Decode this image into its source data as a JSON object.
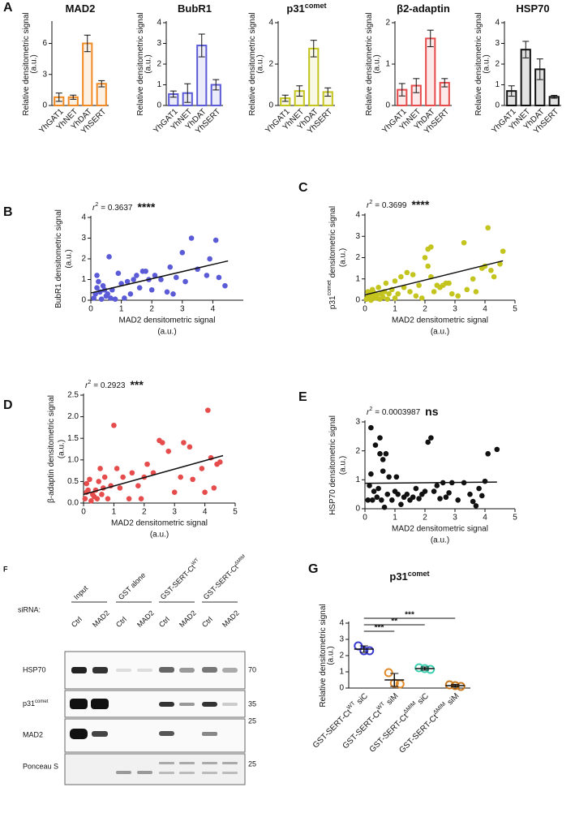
{
  "chart_data": [
    {
      "type": "bar",
      "panel": "A",
      "title": "MAD2",
      "categories": [
        "YhGAT1",
        "YhNET",
        "YhDAT",
        "YhSERT"
      ],
      "values": [
        0.8,
        0.8,
        6.0,
        2.1
      ],
      "errors": [
        0.4,
        0.2,
        0.8,
        0.3
      ],
      "color": "#f08a24",
      "ylim": [
        0,
        8
      ],
      "yticks": [
        0,
        3,
        6
      ],
      "ylabel": [
        "Relative densitometric signal",
        "(a.u.)"
      ]
    },
    {
      "type": "bar",
      "title": "BubR1",
      "categories": [
        "YhGAT1",
        "YhNET",
        "YhDAT",
        "YhSERT"
      ],
      "values": [
        0.55,
        0.6,
        2.9,
        1.0
      ],
      "errors": [
        0.15,
        0.45,
        0.55,
        0.25
      ],
      "color": "#5b5bd8",
      "ylim": [
        0,
        4
      ],
      "yticks": [
        0,
        1,
        2,
        3,
        4
      ],
      "ylabel": [
        "Relative densitometric signal",
        "(a.u.)"
      ]
    },
    {
      "type": "bar",
      "title": "p31",
      "title_sup": "comet",
      "categories": [
        "YhGAT1",
        "YhNET",
        "YhDAT",
        "YhSERT"
      ],
      "values": [
        0.35,
        0.7,
        2.75,
        0.65
      ],
      "errors": [
        0.15,
        0.25,
        0.4,
        0.2
      ],
      "color": "#c4c41e",
      "ylim": [
        0,
        4
      ],
      "yticks": [
        0,
        2,
        4
      ],
      "ylabel": [
        "Relative densitometric signal",
        "(a.u.)"
      ]
    },
    {
      "type": "bar",
      "title": "β2-adaptin",
      "categories": [
        "YhGAT1",
        "YhNET",
        "YhDAT",
        "YhSERT"
      ],
      "values": [
        0.38,
        0.48,
        1.62,
        0.55
      ],
      "errors": [
        0.15,
        0.17,
        0.2,
        0.1
      ],
      "color": "#e64c4c",
      "ylim": [
        0,
        2
      ],
      "yticks": [
        0,
        1,
        2
      ],
      "ylabel": [
        "Relative densitometric signal",
        "(a.u.)"
      ]
    },
    {
      "type": "bar",
      "title": "HSP70",
      "categories": [
        "YhGAT1",
        "YhNET",
        "YhDAT",
        "YhSERT"
      ],
      "values": [
        0.7,
        2.7,
        1.75,
        0.42
      ],
      "errors": [
        0.25,
        0.4,
        0.5,
        0.07
      ],
      "color": "#111111",
      "ylim": [
        0,
        4
      ],
      "yticks": [
        0,
        1,
        2,
        3,
        4
      ],
      "ylabel": [
        "Relative densitometric signal",
        "(a.u.)"
      ]
    },
    {
      "type": "scatter",
      "panel": "B",
      "color": "#5b5bd8",
      "x": [
        0.1,
        0.15,
        0.2,
        0.2,
        0.25,
        0.3,
        0.35,
        0.4,
        0.45,
        0.5,
        0.55,
        0.6,
        0.65,
        0.7,
        0.8,
        0.9,
        1.0,
        1.1,
        1.2,
        1.3,
        1.4,
        1.5,
        1.6,
        1.7,
        1.8,
        1.9,
        2.0,
        2.1,
        2.3,
        2.5,
        2.6,
        2.7,
        2.8,
        3.0,
        3.1,
        3.3,
        3.5,
        3.8,
        4.1,
        4.2,
        4.4,
        3.9
      ],
      "y": [
        0.1,
        0.3,
        0.6,
        1.2,
        0.9,
        0.4,
        0.05,
        0.7,
        0.5,
        0.2,
        0.3,
        2.1,
        0.1,
        0.5,
        0.05,
        1.3,
        0.8,
        0.1,
        0.9,
        0.3,
        1.0,
        1.2,
        0.6,
        1.4,
        1.4,
        1.0,
        0.5,
        1.2,
        1.0,
        0.4,
        1.6,
        0.3,
        1.1,
        2.3,
        0.9,
        3.0,
        1.5,
        1.2,
        2.9,
        1.1,
        0.7,
        2.0
      ],
      "fit": {
        "x": [
          0,
          4.5
        ],
        "y": [
          0.35,
          1.9
        ]
      },
      "stat_prefix": "r",
      "stat_sup": "2",
      "stat_text": "= 0.3637",
      "significance": "****",
      "xlim": [
        0,
        5
      ],
      "xticks": [
        0,
        1,
        2,
        3,
        4
      ],
      "ylim": [
        0,
        4
      ],
      "yticks": [
        0,
        1,
        2,
        3,
        4
      ],
      "xlabel": [
        "MAD2 densitometric signal",
        "(a.u.)"
      ],
      "ylabel": [
        "BubR1 densitometric signal",
        "(a.u.)"
      ]
    },
    {
      "type": "scatter",
      "panel": "C",
      "color": "#c4c41e",
      "x": [
        0.05,
        0.1,
        0.1,
        0.15,
        0.2,
        0.2,
        0.25,
        0.3,
        0.3,
        0.35,
        0.4,
        0.45,
        0.5,
        0.55,
        0.6,
        0.65,
        0.7,
        0.75,
        0.8,
        0.9,
        1.0,
        1.0,
        1.1,
        1.2,
        1.3,
        1.4,
        1.5,
        1.6,
        1.7,
        1.8,
        1.9,
        2.0,
        2.1,
        2.2,
        2.2,
        2.3,
        2.4,
        2.5,
        2.6,
        2.7,
        2.8,
        2.9,
        3.1,
        3.3,
        3.4,
        3.6,
        3.7,
        3.9,
        4.0,
        4.1,
        4.2,
        4.3,
        4.5,
        4.6,
        2.1
      ],
      "y": [
        0.05,
        0.2,
        0.4,
        0.1,
        0.3,
        0,
        0.5,
        0.2,
        0.35,
        0.1,
        0.25,
        0.6,
        0.05,
        0.3,
        0.15,
        0.4,
        0.8,
        0.05,
        0.3,
        0.5,
        0.9,
        0.1,
        0.3,
        1.1,
        0.6,
        1.3,
        0.4,
        1.2,
        0.2,
        0.7,
        0.1,
        2.0,
        1.6,
        2.5,
        1.1,
        0.4,
        0.7,
        0.6,
        0.7,
        0.8,
        0.8,
        0.3,
        0.2,
        2.7,
        0.5,
        1.0,
        0.4,
        1.5,
        1.6,
        3.4,
        1.4,
        1.1,
        1.7,
        2.3,
        2.4
      ],
      "fit": {
        "x": [
          0,
          4.6
        ],
        "y": [
          0.25,
          1.85
        ]
      },
      "stat_prefix": "r",
      "stat_sup": "2",
      "stat_text": "= 0.3699",
      "significance": "****",
      "xlim": [
        0,
        5
      ],
      "xticks": [
        0,
        1,
        2,
        3,
        4,
        5
      ],
      "ylim": [
        0,
        4
      ],
      "yticks": [
        0,
        1,
        2,
        3,
        4
      ],
      "xlabel": [
        "MAD2 densitometric signal",
        "(a.u.)"
      ],
      "ylabel_prefix": "p31",
      "ylabel_sup": "comet",
      "ylabel": [
        "densitometric signal",
        "(a.u.)"
      ]
    },
    {
      "type": "scatter",
      "panel": "D",
      "color": "#e64c4c",
      "x": [
        0.05,
        0.1,
        0.1,
        0.15,
        0.2,
        0.25,
        0.3,
        0.35,
        0.4,
        0.45,
        0.5,
        0.55,
        0.6,
        0.65,
        0.7,
        0.8,
        0.9,
        1.0,
        1.1,
        1.2,
        1.3,
        1.5,
        1.6,
        1.8,
        1.9,
        2.0,
        2.3,
        2.5,
        2.6,
        2.8,
        3.0,
        3.2,
        3.3,
        3.5,
        3.6,
        3.9,
        4.0,
        4.1,
        4.2,
        4.4,
        4.5,
        4.3,
        2.1
      ],
      "y": [
        0.1,
        0.45,
        0.25,
        0.3,
        0.55,
        0.05,
        0.2,
        0.15,
        0.3,
        0.1,
        0.5,
        0.8,
        0.2,
        0.35,
        0.6,
        0.1,
        0.4,
        1.8,
        0.8,
        0.35,
        0.6,
        0.1,
        0.7,
        0.4,
        0.1,
        0.6,
        0.7,
        1.45,
        1.4,
        1.2,
        0.25,
        0.6,
        1.4,
        1.3,
        0.55,
        0.8,
        0.25,
        2.15,
        1.05,
        0.9,
        0.95,
        0.35,
        0.9
      ],
      "fit": {
        "x": [
          0,
          4.6
        ],
        "y": [
          0.2,
          1.1
        ]
      },
      "stat_prefix": "r",
      "stat_sup": "2",
      "stat_text": "= 0.2923",
      "significance": "***",
      "xlim": [
        0,
        5
      ],
      "xticks": [
        0,
        1,
        2,
        3,
        4,
        5
      ],
      "ylim": [
        0,
        2.5
      ],
      "yticks": [
        {
          "value": 0,
          "label": "0.0"
        },
        0.5,
        {
          "value": 1,
          "label": "1.0"
        },
        1.5,
        {
          "value": 2,
          "label": "2.0"
        },
        2.5
      ],
      "xlabel": [
        "MAD2 densitometric signal",
        "(a.u.)"
      ],
      "ylabel": [
        "β-adaptin densitometric signal",
        "(a.u.)"
      ]
    },
    {
      "type": "scatter",
      "panel": "E",
      "color": "#111111",
      "x": [
        0.1,
        0.15,
        0.2,
        0.2,
        0.25,
        0.3,
        0.35,
        0.4,
        0.45,
        0.5,
        0.5,
        0.55,
        0.6,
        0.65,
        0.7,
        0.75,
        0.8,
        0.9,
        1.0,
        1.1,
        1.2,
        1.3,
        1.4,
        1.5,
        1.6,
        1.7,
        1.8,
        1.9,
        2.0,
        2.1,
        2.2,
        2.3,
        2.4,
        2.5,
        2.6,
        2.7,
        2.8,
        2.9,
        3.1,
        3.3,
        3.5,
        3.6,
        3.8,
        3.9,
        4.0,
        4.1,
        4.4,
        1.05,
        0.6,
        3.7
      ],
      "y": [
        0.3,
        0.8,
        2.8,
        1.2,
        0.3,
        0.6,
        2.2,
        0.4,
        0.7,
        1.9,
        2.45,
        0.3,
        1.7,
        0.05,
        1.9,
        0.5,
        1.1,
        0.3,
        0.6,
        0.5,
        0.15,
        0.4,
        0.5,
        0.3,
        0.4,
        0.7,
        0.35,
        0.5,
        0.6,
        2.3,
        2.45,
        0.6,
        0.8,
        0.35,
        0.9,
        0.4,
        0.55,
        0.9,
        0.3,
        0.9,
        0.5,
        0.25,
        0.7,
        0.45,
        0.95,
        1.9,
        2.05,
        1.1,
        1.3,
        0.1
      ],
      "fit": {
        "x": [
          0,
          4.4
        ],
        "y": [
          0.88,
          0.92
        ]
      },
      "stat_prefix": "r",
      "stat_sup": "2",
      "stat_text": "= 0.0003987",
      "significance": "ns",
      "xlim": [
        0,
        5
      ],
      "xticks": [
        0,
        1,
        2,
        3,
        4,
        5
      ],
      "ylim": [
        0,
        3
      ],
      "yticks": [
        0,
        1,
        2,
        3
      ],
      "xlabel": [
        "MAD2 densitometric signal",
        "(a.u.)"
      ],
      "ylabel": [
        "HSP70 densitometric signal",
        "(a.u.)"
      ]
    },
    {
      "type": "dot",
      "panel": "G",
      "title": "p31",
      "title_sup": "comet",
      "categories": [
        {
          "name": "GST-SERT-Ct",
          "sup": "WT",
          "suffix": "siC"
        },
        {
          "name": "GST-SERT-Ct",
          "sup": "WT",
          "suffix": "siM"
        },
        {
          "name": "GST-SERT-Ct",
          "sup": "ΔMIM",
          "suffix": "siC"
        },
        {
          "name": "GST-SERT-Ct",
          "sup": "ΔMIM",
          "suffix": "siM"
        }
      ],
      "points": [
        [
          2.6,
          2.3,
          2.3
        ],
        [
          0.95,
          0.3,
          0.25
        ],
        [
          1.25,
          1.2,
          1.15
        ],
        [
          0.2,
          0.15,
          0.1
        ]
      ],
      "means": [
        2.4,
        0.5,
        1.2,
        0.15
      ],
      "sd": [
        0.2,
        0.4,
        0.1,
        0.08
      ],
      "colors": [
        "#3a3ad0",
        "#e08a2a",
        "#3cd0b0",
        "#c8781e"
      ],
      "comparisons": [
        {
          "pair": [
            0,
            1
          ],
          "label": "***"
        },
        {
          "pair": [
            0,
            2
          ],
          "label": "**"
        },
        {
          "pair": [
            0,
            3
          ],
          "label": "***"
        }
      ],
      "ylim": [
        0,
        4
      ],
      "yticks": [
        0,
        1,
        2,
        3,
        4
      ],
      "ylabel": [
        "Relative densitometric signal",
        "(a.u.)"
      ]
    }
  ],
  "blot": {
    "panel": "F",
    "siRNA_label": "siRNA:",
    "groups": [
      {
        "name": "Input"
      },
      {
        "name": "GST alone"
      },
      {
        "name": "GST-SERT-Ct",
        "sup": "WT"
      },
      {
        "name": "GST-SERT-Ct",
        "sup": "ΔMIM"
      }
    ],
    "lanes": [
      "Ctrl",
      "MAD2",
      "Ctrl",
      "MAD2",
      "Ctrl",
      "MAD2",
      "Ctrl",
      "MAD2"
    ],
    "rows": [
      {
        "name": "HSP70"
      },
      {
        "name": "p31",
        "sup": "comet"
      },
      {
        "name": "MAD2"
      },
      {
        "name": "Ponceau S"
      }
    ],
    "markers": [
      "70",
      "35",
      "25",
      "25"
    ]
  }
}
